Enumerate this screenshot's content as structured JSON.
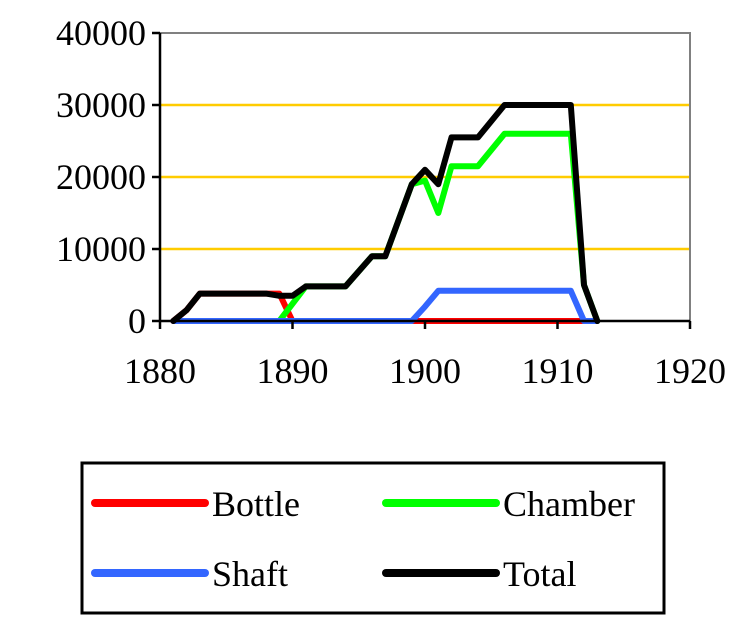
{
  "chart_data": {
    "type": "line",
    "xlim": [
      1880,
      1920
    ],
    "ylim": [
      0,
      40000
    ],
    "x_ticks": [
      1880,
      1890,
      1900,
      1910,
      1920
    ],
    "y_ticks": [
      0,
      10000,
      20000,
      30000,
      40000
    ],
    "grid": "horizontal",
    "legend_placement": "bottom",
    "series": [
      {
        "name": "Bottle",
        "color": "#ff0000",
        "points": [
          [
            1881,
            0
          ],
          [
            1882,
            1500
          ],
          [
            1883,
            3800
          ],
          [
            1884,
            3800
          ],
          [
            1885,
            3800
          ],
          [
            1886,
            3800
          ],
          [
            1887,
            3800
          ],
          [
            1888,
            3800
          ],
          [
            1889,
            3800
          ],
          [
            1890,
            0
          ],
          [
            1913,
            0
          ]
        ]
      },
      {
        "name": "Chamber",
        "color": "#00ff00",
        "points": [
          [
            1889,
            0
          ],
          [
            1891,
            4800
          ],
          [
            1892,
            4800
          ],
          [
            1893,
            4800
          ],
          [
            1894,
            4800
          ],
          [
            1896,
            9000
          ],
          [
            1897,
            9000
          ],
          [
            1899,
            19000
          ],
          [
            1900,
            19500
          ],
          [
            1901,
            15000
          ],
          [
            1902,
            21500
          ],
          [
            1903,
            21500
          ],
          [
            1904,
            21500
          ],
          [
            1906,
            26000
          ],
          [
            1907,
            26000
          ],
          [
            1908,
            26000
          ],
          [
            1909,
            26000
          ],
          [
            1910,
            26000
          ],
          [
            1911,
            26000
          ],
          [
            1912,
            5000
          ],
          [
            1913,
            0
          ]
        ]
      },
      {
        "name": "Shaft",
        "color": "#3366ff",
        "points": [
          [
            1881,
            0
          ],
          [
            1899,
            0
          ],
          [
            1900,
            2000
          ],
          [
            1901,
            4200
          ],
          [
            1902,
            4200
          ],
          [
            1903,
            4200
          ],
          [
            1904,
            4200
          ],
          [
            1905,
            4200
          ],
          [
            1906,
            4200
          ],
          [
            1907,
            4200
          ],
          [
            1908,
            4200
          ],
          [
            1909,
            4200
          ],
          [
            1910,
            4200
          ],
          [
            1911,
            4200
          ],
          [
            1912,
            0
          ],
          [
            1913,
            0
          ]
        ]
      },
      {
        "name": "Total",
        "color": "#000000",
        "points": [
          [
            1881,
            0
          ],
          [
            1882,
            1500
          ],
          [
            1883,
            3800
          ],
          [
            1884,
            3800
          ],
          [
            1885,
            3800
          ],
          [
            1886,
            3800
          ],
          [
            1887,
            3800
          ],
          [
            1888,
            3800
          ],
          [
            1889,
            3500
          ],
          [
            1890,
            3500
          ],
          [
            1891,
            4800
          ],
          [
            1892,
            4800
          ],
          [
            1893,
            4800
          ],
          [
            1894,
            4800
          ],
          [
            1896,
            9000
          ],
          [
            1897,
            9000
          ],
          [
            1899,
            19000
          ],
          [
            1900,
            21000
          ],
          [
            1901,
            19000
          ],
          [
            1902,
            25500
          ],
          [
            1903,
            25500
          ],
          [
            1904,
            25500
          ],
          [
            1906,
            30000
          ],
          [
            1907,
            30000
          ],
          [
            1908,
            30000
          ],
          [
            1909,
            30000
          ],
          [
            1910,
            30000
          ],
          [
            1911,
            30000
          ],
          [
            1912,
            5000
          ],
          [
            1913,
            0
          ]
        ]
      }
    ],
    "colors": {
      "plot_background": "#ffffff",
      "gridline": "#ffcc00",
      "plot_border": "#808080"
    }
  }
}
